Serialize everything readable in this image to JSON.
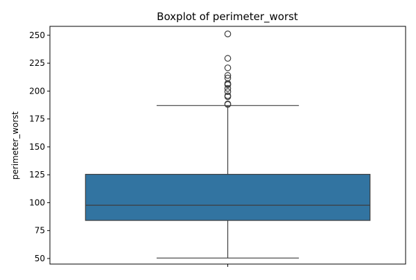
{
  "chart_data": {
    "type": "box",
    "title": "Boxplot of perimeter_worst",
    "xlabel": "",
    "ylabel": "perimeter_worst",
    "ylim": [
      45,
      258
    ],
    "yticks": [
      50,
      75,
      100,
      125,
      150,
      175,
      200,
      225,
      250
    ],
    "grid": false,
    "legend": "none",
    "series": [
      {
        "stats": {
          "whisker_low": 50.4,
          "q1": 84.1,
          "median": 97.7,
          "q3": 125.4,
          "whisker_high": 187.0
        },
        "outliers": [
          188.0,
          188.5,
          195.0,
          195.9,
          199.5,
          202.4,
          205.7,
          206.0,
          206.8,
          211.7,
          214.0,
          220.8,
          229.3,
          251.2
        ],
        "color": "#3274a1"
      }
    ]
  }
}
